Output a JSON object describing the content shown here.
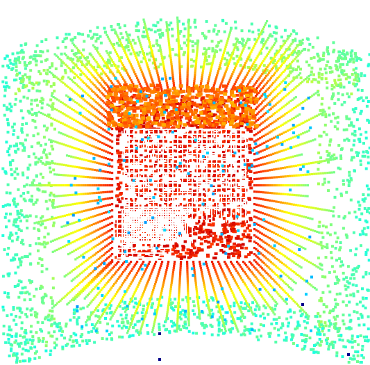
{
  "visualization": {
    "kind": "3d point cloud / voxel field visualization",
    "background_color": "#ffffff",
    "colormap": "jet",
    "colormap_stops": [
      "#000080",
      "#00a0ff",
      "#00ffff",
      "#66ff99",
      "#ccff33",
      "#ffff00",
      "#ff9900",
      "#ff3300",
      "#cc0000"
    ],
    "structures": [
      {
        "name": "outer-shell",
        "color_family": "cyan-green"
      },
      {
        "name": "radial-rays",
        "color_family": "green-yellow-orange"
      },
      {
        "name": "dense-core",
        "color_family": "red"
      },
      {
        "name": "core-grid",
        "color": "#ffffff"
      },
      {
        "name": "scattered-points",
        "color_family": "cyan-blue"
      }
    ],
    "isolated_points": [
      {
        "name": "navy-point",
        "color": "#00008b"
      }
    ]
  }
}
